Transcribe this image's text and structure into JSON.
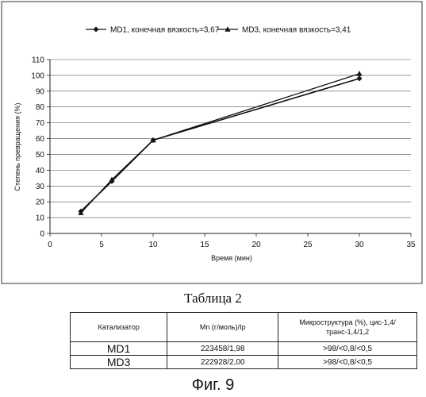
{
  "chart_data": {
    "type": "line",
    "title": "",
    "xlabel": "Время (мин)",
    "ylabel": "Степень превращения (%)",
    "xlim": [
      0,
      35
    ],
    "ylim": [
      0,
      110
    ],
    "x_ticks": [
      0,
      5,
      10,
      15,
      20,
      25,
      30,
      35
    ],
    "y_ticks": [
      0,
      10,
      20,
      30,
      40,
      50,
      60,
      70,
      80,
      90,
      100,
      110
    ],
    "grid": "horizontal",
    "legend_position": "top",
    "series": [
      {
        "name": "MD1, конечная вязкость=3,67",
        "marker": "diamond",
        "x": [
          3,
          6,
          10,
          30
        ],
        "y": [
          14,
          33,
          59,
          98
        ]
      },
      {
        "name": "MD3, конечная вязкость=3,41",
        "marker": "triangle",
        "x": [
          3,
          6,
          10,
          30
        ],
        "y": [
          13,
          34,
          59,
          101
        ]
      }
    ]
  },
  "table": {
    "caption": "Таблица 2",
    "headers": [
      "Катализатор",
      "Mn (г/моль)/Ip",
      "Микроструктура (%), цис-1,4/транс-1,4/1,2"
    ],
    "rows": [
      [
        "MD1",
        "223458/1,98",
        ">98/<0,8/<0,5"
      ],
      [
        "MD3",
        "222928/2,00",
        ">98/<0,8/<0,5"
      ]
    ]
  },
  "figure_label": "Фиг. 9"
}
